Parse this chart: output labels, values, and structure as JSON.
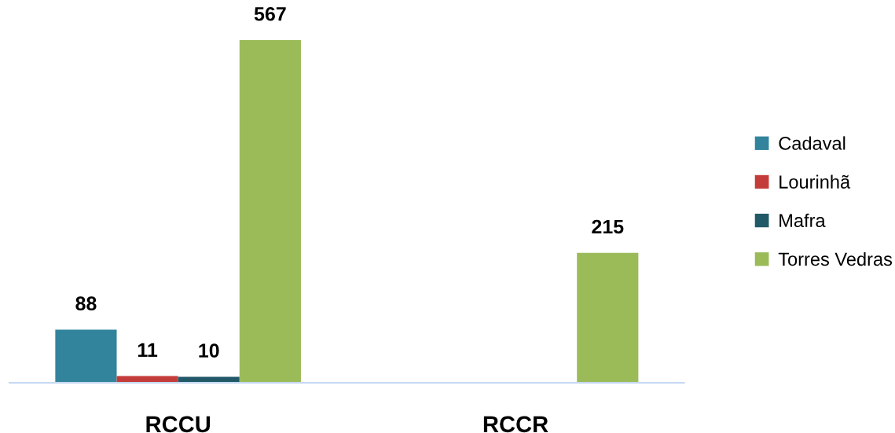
{
  "chart_data": {
    "type": "bar",
    "categories": [
      "RCCU",
      "RCCR"
    ],
    "series": [
      {
        "name": "Cadaval",
        "color": "#31849b",
        "values": [
          88,
          null
        ]
      },
      {
        "name": "Lourinhã",
        "color": "#c43c3a",
        "values": [
          11,
          null
        ]
      },
      {
        "name": "Mafra",
        "color": "#215968",
        "values": [
          10,
          null
        ]
      },
      {
        "name": "Torres Vedras",
        "color": "#9bbb59",
        "values": [
          567,
          215
        ]
      }
    ],
    "data_labels": true,
    "legend": "right",
    "tick_labels": "x"
  }
}
